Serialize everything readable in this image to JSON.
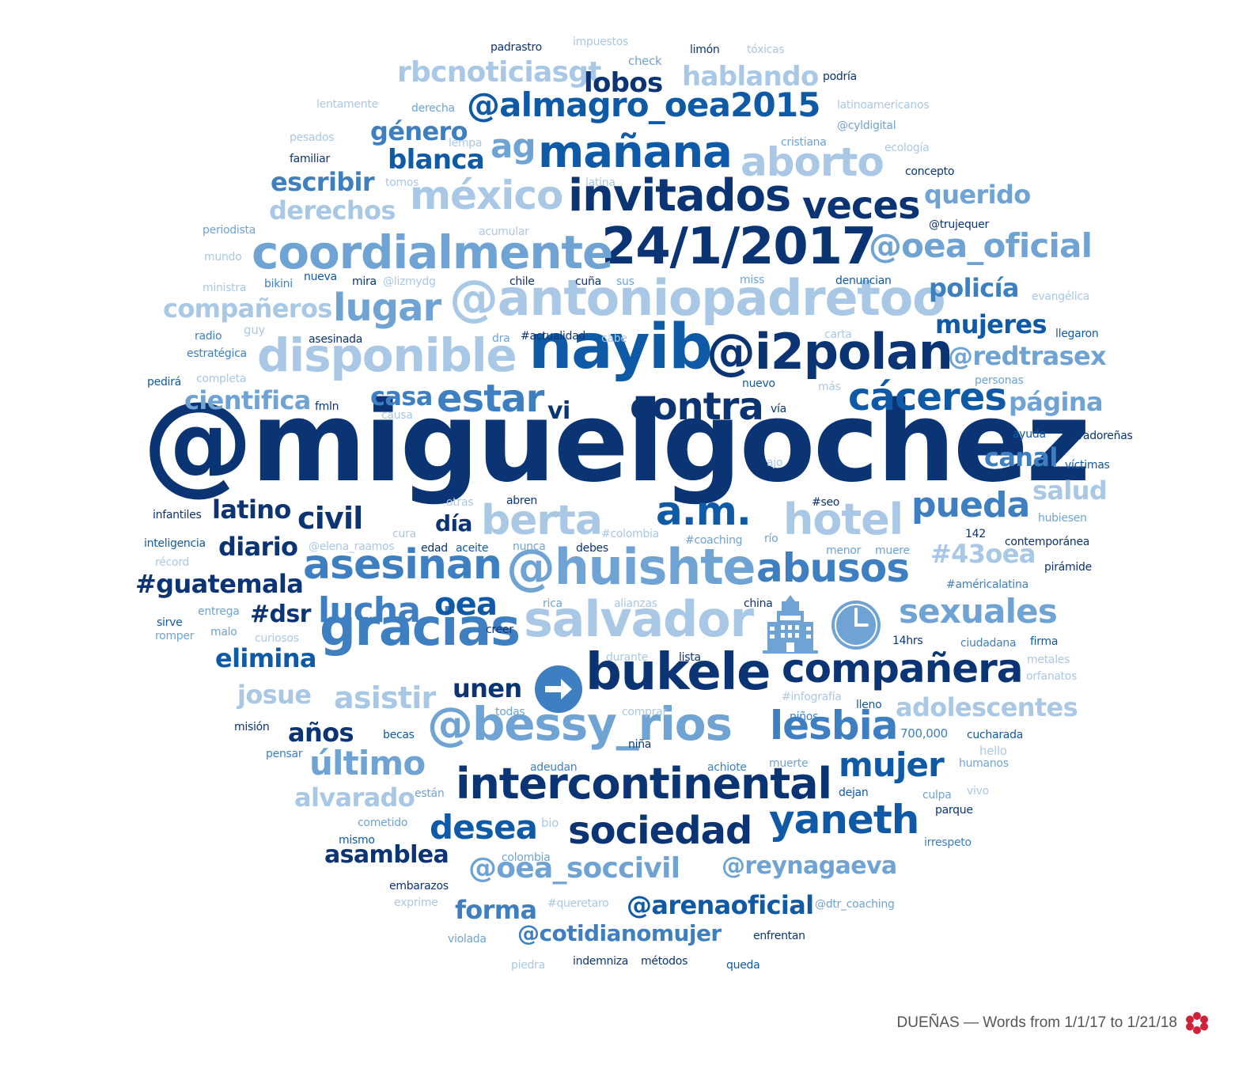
{
  "footer": {
    "caption": "DUEÑAS — Words from 1/1/17 to 1/21/18"
  },
  "colors": {
    "c1": "#0b3474",
    "c2": "#0f5aa6",
    "c3": "#3d7fc1",
    "c4": "#6fa3d3",
    "c5": "#a9c8e5"
  },
  "icons": [
    "arrow-right-icon",
    "hotel-icon",
    "clock-icon",
    "flower-logo-icon"
  ],
  "words": [
    {
      "t": "@miguelgochez",
      "f": 140,
      "c": "c1"
    },
    {
      "t": "nayib",
      "f": 78,
      "c": "c2"
    },
    {
      "t": "@i2polan",
      "f": 62,
      "c": "c1"
    },
    {
      "t": "@antoniopadretoo",
      "f": 62,
      "c": "c5"
    },
    {
      "t": "24/1/2017",
      "f": 64,
      "c": "c1"
    },
    {
      "t": "coordialmente",
      "f": 58,
      "c": "c4"
    },
    {
      "t": "disponible",
      "f": 58,
      "c": "c5"
    },
    {
      "t": "invitados",
      "f": 56,
      "c": "c1"
    },
    {
      "t": "mañana",
      "f": 56,
      "c": "c2"
    },
    {
      "t": "méxico",
      "f": 50,
      "c": "c5"
    },
    {
      "t": "aborto",
      "f": 50,
      "c": "c5"
    },
    {
      "t": "veces",
      "f": 48,
      "c": "c1"
    },
    {
      "t": "lugar",
      "f": 48,
      "c": "c4"
    },
    {
      "t": "contra",
      "f": 48,
      "c": "c1"
    },
    {
      "t": "cáceres",
      "f": 48,
      "c": "c2"
    },
    {
      "t": "estar",
      "f": 48,
      "c": "c3"
    },
    {
      "t": "gracias",
      "f": 64,
      "c": "c3"
    },
    {
      "t": "salvador",
      "f": 62,
      "c": "c5"
    },
    {
      "t": "bukele",
      "f": 64,
      "c": "c1"
    },
    {
      "t": "asesinan",
      "f": 52,
      "c": "c3"
    },
    {
      "t": "@huishte",
      "f": 62,
      "c": "c4"
    },
    {
      "t": "abusos",
      "f": 50,
      "c": "c3"
    },
    {
      "t": "hotel",
      "f": 54,
      "c": "c5"
    },
    {
      "t": "a.m.",
      "f": 50,
      "c": "c2"
    },
    {
      "t": "berta",
      "f": 52,
      "c": "c5"
    },
    {
      "t": "pueda",
      "f": 44,
      "c": "c3"
    },
    {
      "t": "@bessy_rios",
      "f": 58,
      "c": "c4"
    },
    {
      "t": "intercontinental",
      "f": 54,
      "c": "c1"
    },
    {
      "t": "compañera",
      "f": 50,
      "c": "c1"
    },
    {
      "t": "lesbia",
      "f": 50,
      "c": "c3"
    },
    {
      "t": "mujer",
      "f": 42,
      "c": "c2"
    },
    {
      "t": "sociedad",
      "f": 48,
      "c": "c1"
    },
    {
      "t": "yaneth",
      "f": 50,
      "c": "c2"
    },
    {
      "t": "desea",
      "f": 42,
      "c": "c2"
    },
    {
      "t": "último",
      "f": 42,
      "c": "c4"
    },
    {
      "t": "lucha",
      "f": 44,
      "c": "c3"
    },
    {
      "t": "oea",
      "f": 40,
      "c": "c2"
    },
    {
      "t": "sexuales",
      "f": 42,
      "c": "c4"
    },
    {
      "t": "asistir",
      "f": 38,
      "c": "c5"
    },
    {
      "t": "@almagro_oea2015",
      "f": 42,
      "c": "c2"
    },
    {
      "t": "rbcnoticiasgt",
      "f": 36,
      "c": "c5"
    },
    {
      "t": "hablando",
      "f": 34,
      "c": "c5"
    },
    {
      "t": "lobos",
      "f": 34,
      "c": "c1"
    },
    {
      "t": "@oea_oficial",
      "f": 42,
      "c": "c4"
    },
    {
      "t": "género",
      "f": 32,
      "c": "c3"
    },
    {
      "t": "ag",
      "f": 42,
      "c": "c4"
    },
    {
      "t": "blanca",
      "f": 34,
      "c": "c2"
    },
    {
      "t": "escribir",
      "f": 32,
      "c": "c3"
    },
    {
      "t": "derechos",
      "f": 32,
      "c": "c5"
    },
    {
      "t": "querido",
      "f": 32,
      "c": "c4"
    },
    {
      "t": "compañeros",
      "f": 32,
      "c": "c5"
    },
    {
      "t": "policía",
      "f": 32,
      "c": "c3"
    },
    {
      "t": "mujeres",
      "f": 32,
      "c": "c2"
    },
    {
      "t": "@redtrasex",
      "f": 32,
      "c": "c4"
    },
    {
      "t": "cientifica",
      "f": 32,
      "c": "c4"
    },
    {
      "t": "casa",
      "f": 32,
      "c": "c3"
    },
    {
      "t": "vi",
      "f": 30,
      "c": "c1"
    },
    {
      "t": "página",
      "f": 32,
      "c": "c4"
    },
    {
      "t": "canal",
      "f": 32,
      "c": "c3"
    },
    {
      "t": "salud",
      "f": 32,
      "c": "c5"
    },
    {
      "t": "civil",
      "f": 38,
      "c": "c1"
    },
    {
      "t": "latino",
      "f": 32,
      "c": "c1"
    },
    {
      "t": "día",
      "f": 28,
      "c": "c1"
    },
    {
      "t": "diario",
      "f": 32,
      "c": "c1"
    },
    {
      "t": "#guatemala",
      "f": 32,
      "c": "c1"
    },
    {
      "t": "#43oea",
      "f": 32,
      "c": "c5"
    },
    {
      "t": "#dsr",
      "f": 30,
      "c": "c1"
    },
    {
      "t": "elimina",
      "f": 32,
      "c": "c2"
    },
    {
      "t": "josue",
      "f": 32,
      "c": "c5"
    },
    {
      "t": "unen",
      "f": 32,
      "c": "c1"
    },
    {
      "t": "adolescentes",
      "f": 32,
      "c": "c5"
    },
    {
      "t": "años",
      "f": 32,
      "c": "c1"
    },
    {
      "t": "alvarado",
      "f": 32,
      "c": "c5"
    },
    {
      "t": "asamblea",
      "f": 30,
      "c": "c1"
    },
    {
      "t": "@oea_soccivil",
      "f": 36,
      "c": "c4"
    },
    {
      "t": "@reynagaeva",
      "f": 30,
      "c": "c4"
    },
    {
      "t": "forma",
      "f": 32,
      "c": "c3"
    },
    {
      "t": "@arenaoficial",
      "f": 32,
      "c": "c2"
    },
    {
      "t": "@cotidianomujer",
      "f": 28,
      "c": "c3"
    },
    {
      "t": "padrastro",
      "f": 14,
      "c": "c1"
    },
    {
      "t": "impuestos",
      "f": 14,
      "c": "c5"
    },
    {
      "t": "limón",
      "f": 14,
      "c": "c1"
    },
    {
      "t": "tóxicas",
      "f": 14,
      "c": "c5"
    },
    {
      "t": "check",
      "f": 15,
      "c": "c4"
    },
    {
      "t": "podría",
      "f": 14,
      "c": "c1"
    },
    {
      "t": "lentamente",
      "f": 14,
      "c": "c5"
    },
    {
      "t": "derecha",
      "f": 14,
      "c": "c4"
    },
    {
      "t": "latinoamericanos",
      "f": 14,
      "c": "c5"
    },
    {
      "t": "@cyldigital",
      "f": 14,
      "c": "c4"
    },
    {
      "t": "pesados",
      "f": 14,
      "c": "c5"
    },
    {
      "t": "lempa",
      "f": 14,
      "c": "c5"
    },
    {
      "t": "cristiana",
      "f": 14,
      "c": "c4"
    },
    {
      "t": "ecología",
      "f": 14,
      "c": "c5"
    },
    {
      "t": "familiar",
      "f": 14,
      "c": "c1"
    },
    {
      "t": "tomos",
      "f": 14,
      "c": "c5"
    },
    {
      "t": "latina",
      "f": 14,
      "c": "c5"
    },
    {
      "t": "concepto",
      "f": 14,
      "c": "c1"
    },
    {
      "t": "@trujequer",
      "f": 14,
      "c": "c1"
    },
    {
      "t": "periodista",
      "f": 14,
      "c": "c4"
    },
    {
      "t": "acumular",
      "f": 14,
      "c": "c5"
    },
    {
      "t": "mundo",
      "f": 14,
      "c": "c5"
    },
    {
      "t": "ministra",
      "f": 14,
      "c": "c5"
    },
    {
      "t": "bikini",
      "f": 14,
      "c": "c3"
    },
    {
      "t": "nueva",
      "f": 14,
      "c": "c2"
    },
    {
      "t": "mira",
      "f": 14,
      "c": "c1"
    },
    {
      "t": "@lizmydg",
      "f": 14,
      "c": "c5"
    },
    {
      "t": "chile",
      "f": 14,
      "c": "c1"
    },
    {
      "t": "cuña",
      "f": 14,
      "c": "c1"
    },
    {
      "t": "sus",
      "f": 14,
      "c": "c4"
    },
    {
      "t": "miss",
      "f": 14,
      "c": "c4"
    },
    {
      "t": "denuncian",
      "f": 14,
      "c": "c2"
    },
    {
      "t": "evangélica",
      "f": 14,
      "c": "c5"
    },
    {
      "t": "guy",
      "f": 15,
      "c": "c5"
    },
    {
      "t": "radio",
      "f": 14,
      "c": "c3"
    },
    {
      "t": "asesinada",
      "f": 14,
      "c": "c1"
    },
    {
      "t": "dra",
      "f": 14,
      "c": "c4"
    },
    {
      "t": "#actualidad",
      "f": 14,
      "c": "c1"
    },
    {
      "t": "cabe",
      "f": 14,
      "c": "c5"
    },
    {
      "t": "carta",
      "f": 14,
      "c": "c5"
    },
    {
      "t": "llegaron",
      "f": 14,
      "c": "c2"
    },
    {
      "t": "estratégica",
      "f": 14,
      "c": "c3"
    },
    {
      "t": "completa",
      "f": 14,
      "c": "c5"
    },
    {
      "t": "pedirá",
      "f": 14,
      "c": "c2"
    },
    {
      "t": "nuevo",
      "f": 14,
      "c": "c2"
    },
    {
      "t": "más",
      "f": 14,
      "c": "c5"
    },
    {
      "t": "personas",
      "f": 14,
      "c": "c4"
    },
    {
      "t": "fmln",
      "f": 14,
      "c": "c1"
    },
    {
      "t": "causa",
      "f": 14,
      "c": "c5"
    },
    {
      "t": "vía",
      "f": 14,
      "c": "c1"
    },
    {
      "t": "ayuda",
      "f": 14,
      "c": "c2"
    },
    {
      "t": "salvadoreñas",
      "f": 14,
      "c": "c1"
    },
    {
      "t": "ajo",
      "f": 14,
      "c": "c5"
    },
    {
      "t": "víctimas",
      "f": 14,
      "c": "c2"
    },
    {
      "t": "otras",
      "f": 14,
      "c": "c5"
    },
    {
      "t": "abren",
      "f": 14,
      "c": "c1"
    },
    {
      "t": "#seo",
      "f": 14,
      "c": "c1"
    },
    {
      "t": "infantiles",
      "f": 14,
      "c": "c1"
    },
    {
      "t": "cura",
      "f": 14,
      "c": "c5"
    },
    {
      "t": "#colombia",
      "f": 14,
      "c": "c5"
    },
    {
      "t": "hubiesen",
      "f": 14,
      "c": "c4"
    },
    {
      "t": "inteligencia",
      "f": 14,
      "c": "c2"
    },
    {
      "t": "@elena_raamos",
      "f": 14,
      "c": "c5"
    },
    {
      "t": "edad",
      "f": 14,
      "c": "c1"
    },
    {
      "t": "aceite",
      "f": 14,
      "c": "c2"
    },
    {
      "t": "nunca",
      "f": 14,
      "c": "c4"
    },
    {
      "t": "debes",
      "f": 14,
      "c": "c1"
    },
    {
      "t": "#coaching",
      "f": 14,
      "c": "c4"
    },
    {
      "t": "río",
      "f": 14,
      "c": "c4"
    },
    {
      "t": "142",
      "f": 14,
      "c": "c1"
    },
    {
      "t": "menor",
      "f": 14,
      "c": "c4"
    },
    {
      "t": "muere",
      "f": 14,
      "c": "c4"
    },
    {
      "t": "contemporánea",
      "f": 14,
      "c": "c1"
    },
    {
      "t": "récord",
      "f": 14,
      "c": "c5"
    },
    {
      "t": "pirámide",
      "f": 14,
      "c": "c1"
    },
    {
      "t": "#américalatina",
      "f": 14,
      "c": "c3"
    },
    {
      "t": "entrega",
      "f": 14,
      "c": "c4"
    },
    {
      "t": "rica",
      "f": 14,
      "c": "c4"
    },
    {
      "t": "alianzas",
      "f": 14,
      "c": "c5"
    },
    {
      "t": "china",
      "f": 14,
      "c": "c1"
    },
    {
      "t": "sirve",
      "f": 14,
      "c": "c2"
    },
    {
      "t": "malo",
      "f": 14,
      "c": "c4"
    },
    {
      "t": "romper",
      "f": 14,
      "c": "c4"
    },
    {
      "t": "curiosos",
      "f": 14,
      "c": "c5"
    },
    {
      "t": "creer",
      "f": 14,
      "c": "c1"
    },
    {
      "t": "14hrs",
      "f": 14,
      "c": "c1"
    },
    {
      "t": "ciudadana",
      "f": 14,
      "c": "c3"
    },
    {
      "t": "firma",
      "f": 14,
      "c": "c2"
    },
    {
      "t": "durante",
      "f": 14,
      "c": "c5"
    },
    {
      "t": "lista",
      "f": 14,
      "c": "c1"
    },
    {
      "t": "metales",
      "f": 14,
      "c": "c5"
    },
    {
      "t": "orfanatos",
      "f": 14,
      "c": "c5"
    },
    {
      "t": "#infografía",
      "f": 14,
      "c": "c5"
    },
    {
      "t": "lleno",
      "f": 14,
      "c": "c2"
    },
    {
      "t": "todas",
      "f": 14,
      "c": "c4"
    },
    {
      "t": "comprar",
      "f": 14,
      "c": "c5"
    },
    {
      "t": "niños",
      "f": 14,
      "c": "c3"
    },
    {
      "t": "misión",
      "f": 14,
      "c": "c1"
    },
    {
      "t": "becas",
      "f": 14,
      "c": "c2"
    },
    {
      "t": "niña",
      "f": 14,
      "c": "c1"
    },
    {
      "t": "700,000",
      "f": 15,
      "c": "c3"
    },
    {
      "t": "cucharada",
      "f": 14,
      "c": "c2"
    },
    {
      "t": "hello",
      "f": 15,
      "c": "c5"
    },
    {
      "t": "pensar",
      "f": 14,
      "c": "c3"
    },
    {
      "t": "adeudan",
      "f": 14,
      "c": "c3"
    },
    {
      "t": "achiote",
      "f": 14,
      "c": "c3"
    },
    {
      "t": "muerte",
      "f": 14,
      "c": "c4"
    },
    {
      "t": "humanos",
      "f": 14,
      "c": "c4"
    },
    {
      "t": "están",
      "f": 14,
      "c": "c4"
    },
    {
      "t": "dejan",
      "f": 14,
      "c": "c2"
    },
    {
      "t": "culpa",
      "f": 14,
      "c": "c4"
    },
    {
      "t": "vivo",
      "f": 14,
      "c": "c5"
    },
    {
      "t": "bio",
      "f": 15,
      "c": "c5"
    },
    {
      "t": "cometido",
      "f": 14,
      "c": "c4"
    },
    {
      "t": "parque",
      "f": 14,
      "c": "c1"
    },
    {
      "t": "mismo",
      "f": 14,
      "c": "c2"
    },
    {
      "t": "irrespeto",
      "f": 14,
      "c": "c3"
    },
    {
      "t": "colombia",
      "f": 14,
      "c": "c4"
    },
    {
      "t": "embarazos",
      "f": 14,
      "c": "c1"
    },
    {
      "t": "exprime",
      "f": 14,
      "c": "c5"
    },
    {
      "t": "#queretaro",
      "f": 14,
      "c": "c5"
    },
    {
      "t": "@dtr_coaching",
      "f": 14,
      "c": "c4"
    },
    {
      "t": "violada",
      "f": 14,
      "c": "c4"
    },
    {
      "t": "enfrentan",
      "f": 14,
      "c": "c1"
    },
    {
      "t": "piedra",
      "f": 14,
      "c": "c5"
    },
    {
      "t": "indemniza",
      "f": 14,
      "c": "c1"
    },
    {
      "t": "métodos",
      "f": 14,
      "c": "c1"
    },
    {
      "t": "queda",
      "f": 14,
      "c": "c2"
    }
  ]
}
